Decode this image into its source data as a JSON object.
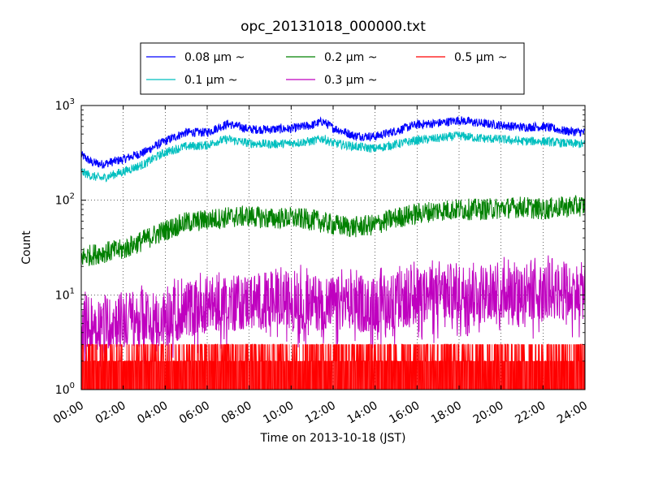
{
  "chart_data": {
    "type": "line",
    "title": "opc_20131018_000000.txt",
    "xlabel": "Time on 2013-10-18 (JST)",
    "ylabel": "Count",
    "yscale": "log",
    "xlim": [
      "00:00",
      "24:00"
    ],
    "ylim": [
      1,
      1000
    ],
    "x_ticks": [
      "00:00",
      "02:00",
      "04:00",
      "06:00",
      "08:00",
      "10:00",
      "12:00",
      "14:00",
      "16:00",
      "18:00",
      "20:00",
      "22:00",
      "24:00"
    ],
    "y_ticks": [
      {
        "value": 1,
        "base": "10",
        "exp": "0"
      },
      {
        "value": 10,
        "base": "10",
        "exp": "1"
      },
      {
        "value": 100,
        "base": "10",
        "exp": "2"
      },
      {
        "value": 1000,
        "base": "10",
        "exp": "3"
      }
    ],
    "grid": true,
    "legend_position": "top-center",
    "series": [
      {
        "name": "0.08 μm ~",
        "color": "#0000ff",
        "noise": 0.05,
        "x": [
          "00:00",
          "00:30",
          "01:00",
          "02:00",
          "03:00",
          "04:00",
          "05:00",
          "06:00",
          "06:30",
          "07:00",
          "08:00",
          "09:00",
          "10:00",
          "11:00",
          "11:30",
          "12:00",
          "13:00",
          "14:00",
          "15:00",
          "16:00",
          "17:00",
          "18:00",
          "19:00",
          "20:00",
          "21:00",
          "22:00",
          "23:00",
          "24:00"
        ],
        "y": [
          300,
          250,
          240,
          270,
          320,
          420,
          520,
          520,
          580,
          640,
          560,
          560,
          570,
          620,
          680,
          580,
          480,
          470,
          540,
          630,
          650,
          700,
          650,
          620,
          590,
          600,
          540,
          520
        ]
      },
      {
        "name": "0.1 μm ~",
        "color": "#00bfbf",
        "noise": 0.05,
        "x": [
          "00:00",
          "00:30",
          "01:00",
          "02:00",
          "03:00",
          "04:00",
          "05:00",
          "06:00",
          "06:30",
          "07:00",
          "08:00",
          "09:00",
          "10:00",
          "11:00",
          "11:30",
          "12:00",
          "13:00",
          "14:00",
          "15:00",
          "16:00",
          "17:00",
          "18:00",
          "19:00",
          "20:00",
          "21:00",
          "22:00",
          "23:00",
          "24:00"
        ],
        "y": [
          200,
          180,
          170,
          200,
          240,
          320,
          370,
          380,
          420,
          440,
          400,
          390,
          400,
          420,
          450,
          400,
          370,
          350,
          390,
          430,
          450,
          480,
          450,
          440,
          420,
          420,
          400,
          390
        ]
      },
      {
        "name": "0.2 μm ~",
        "color": "#008000",
        "noise": 0.12,
        "x": [
          "00:00",
          "01:00",
          "02:00",
          "03:00",
          "04:00",
          "05:00",
          "06:00",
          "07:00",
          "08:00",
          "09:00",
          "10:00",
          "11:00",
          "12:00",
          "13:00",
          "14:00",
          "15:00",
          "16:00",
          "17:00",
          "18:00",
          "19:00",
          "20:00",
          "21:00",
          "22:00",
          "23:00",
          "24:00"
        ],
        "y": [
          25,
          28,
          30,
          38,
          48,
          58,
          62,
          66,
          68,
          64,
          65,
          62,
          55,
          52,
          55,
          65,
          72,
          78,
          80,
          80,
          82,
          85,
          80,
          85,
          88
        ]
      },
      {
        "name": "0.3 μm ~",
        "color": "#bf00bf",
        "noise": 0.3,
        "x": [
          "00:00",
          "02:00",
          "04:00",
          "06:00",
          "08:00",
          "10:00",
          "12:00",
          "14:00",
          "16:00",
          "18:00",
          "20:00",
          "22:00",
          "24:00"
        ],
        "y": [
          5,
          5.5,
          6,
          8,
          8.5,
          9,
          8,
          8,
          9.5,
          11,
          11,
          11,
          11
        ]
      },
      {
        "name": "0.5 μm ~",
        "color": "#ff0000",
        "noise": 0,
        "x": [
          "00:00",
          "24:00"
        ],
        "y": [
          1.3,
          1.3
        ]
      }
    ]
  }
}
